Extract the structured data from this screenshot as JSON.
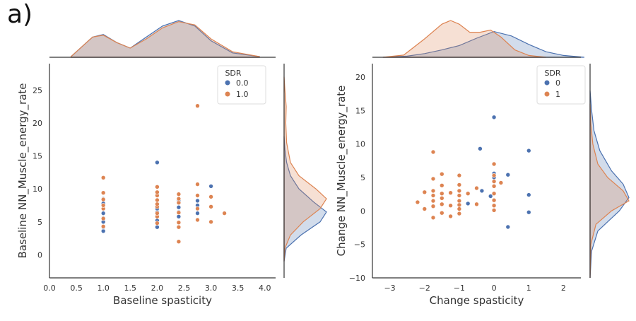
{
  "panel_label": "a)",
  "chart_data": [
    {
      "type": "scatter",
      "xlabel": "Baseline spasticity",
      "ylabel": "Baseline NN_Muscle_energy_rate",
      "xlim": [
        0.0,
        4.2
      ],
      "ylim": [
        -3.5,
        29
      ],
      "xticks": [
        "0.0",
        "0.5",
        "1.0",
        "1.5",
        "2.0",
        "2.5",
        "3.0",
        "3.5",
        "4.0"
      ],
      "xtick_values": [
        0.0,
        0.5,
        1.0,
        1.5,
        2.0,
        2.5,
        3.0,
        3.5,
        4.0
      ],
      "yticks": [
        "0",
        "5",
        "10",
        "15",
        "20",
        "25"
      ],
      "ytick_values": [
        0,
        5,
        10,
        15,
        20,
        25
      ],
      "legend": {
        "title": "SDR",
        "placement": "top-right"
      },
      "grid": false,
      "marginal": "kde",
      "series": [
        {
          "name": "0.0",
          "color": "#4c72b0",
          "points": [
            [
              1.0,
              3.6
            ],
            [
              1.0,
              4.2
            ],
            [
              1.0,
              5.0
            ],
            [
              1.0,
              5.6
            ],
            [
              1.0,
              6.3
            ],
            [
              1.0,
              7.0
            ],
            [
              1.0,
              7.8
            ],
            [
              1.0,
              8.5
            ],
            [
              2.0,
              4.2
            ],
            [
              2.0,
              5.2
            ],
            [
              2.0,
              6.5
            ],
            [
              2.0,
              7.0
            ],
            [
              2.0,
              7.5
            ],
            [
              2.0,
              14.0
            ],
            [
              2.4,
              5.8
            ],
            [
              2.4,
              6.5
            ],
            [
              2.4,
              7.2
            ],
            [
              2.4,
              8.2
            ],
            [
              2.75,
              6.3
            ],
            [
              2.75,
              7.5
            ],
            [
              2.75,
              8.2
            ],
            [
              3.0,
              10.4
            ]
          ],
          "marginal_x": [
            [
              0.4,
              0.02
            ],
            [
              0.8,
              0.55
            ],
            [
              1.0,
              0.62
            ],
            [
              1.25,
              0.4
            ],
            [
              1.5,
              0.25
            ],
            [
              1.8,
              0.55
            ],
            [
              2.1,
              0.85
            ],
            [
              2.4,
              1.0
            ],
            [
              2.7,
              0.85
            ],
            [
              3.0,
              0.45
            ],
            [
              3.4,
              0.12
            ],
            [
              3.9,
              0.02
            ]
          ],
          "marginal_y": [
            [
              -1,
              0.0
            ],
            [
              1,
              0.05
            ],
            [
              3,
              0.4
            ],
            [
              5,
              0.85
            ],
            [
              6.5,
              1.0
            ],
            [
              8,
              0.7
            ],
            [
              10,
              0.35
            ],
            [
              12,
              0.15
            ],
            [
              14,
              0.06
            ],
            [
              16,
              0.02
            ],
            [
              18,
              0.0
            ]
          ]
        },
        {
          "name": "1.0",
          "color": "#dd8452",
          "points": [
            [
              1.0,
              4.3
            ],
            [
              1.0,
              5.5
            ],
            [
              1.0,
              7.0
            ],
            [
              1.0,
              7.5
            ],
            [
              1.0,
              8.4
            ],
            [
              1.0,
              9.4
            ],
            [
              1.0,
              11.7
            ],
            [
              2.0,
              4.8
            ],
            [
              2.0,
              5.8
            ],
            [
              2.0,
              6.3
            ],
            [
              2.0,
              7.3
            ],
            [
              2.0,
              7.7
            ],
            [
              2.0,
              8.3
            ],
            [
              2.0,
              9.0
            ],
            [
              2.0,
              9.5
            ],
            [
              2.0,
              10.3
            ],
            [
              2.4,
              2.0
            ],
            [
              2.4,
              4.2
            ],
            [
              2.4,
              4.9
            ],
            [
              2.4,
              6.4
            ],
            [
              2.4,
              7.9
            ],
            [
              2.4,
              8.5
            ],
            [
              2.4,
              9.2
            ],
            [
              2.75,
              5.3
            ],
            [
              2.75,
              7.0
            ],
            [
              2.75,
              9.0
            ],
            [
              2.75,
              10.7
            ],
            [
              2.75,
              22.6
            ],
            [
              3.0,
              5.0
            ],
            [
              3.0,
              7.3
            ],
            [
              3.0,
              8.8
            ],
            [
              3.25,
              6.3
            ]
          ],
          "marginal_x": [
            [
              0.4,
              0.02
            ],
            [
              0.8,
              0.55
            ],
            [
              1.0,
              0.6
            ],
            [
              1.25,
              0.4
            ],
            [
              1.5,
              0.25
            ],
            [
              1.8,
              0.5
            ],
            [
              2.1,
              0.8
            ],
            [
              2.4,
              0.97
            ],
            [
              2.7,
              0.88
            ],
            [
              3.0,
              0.5
            ],
            [
              3.4,
              0.15
            ],
            [
              3.9,
              0.02
            ]
          ],
          "marginal_y": [
            [
              -1,
              0.0
            ],
            [
              1,
              0.02
            ],
            [
              3,
              0.15
            ],
            [
              5,
              0.45
            ],
            [
              7,
              0.85
            ],
            [
              8.5,
              1.0
            ],
            [
              10,
              0.75
            ],
            [
              12,
              0.35
            ],
            [
              14,
              0.15
            ],
            [
              17,
              0.06
            ],
            [
              20,
              0.04
            ],
            [
              22.5,
              0.05
            ],
            [
              25,
              0.02
            ],
            [
              27,
              0.0
            ]
          ]
        }
      ]
    },
    {
      "type": "scatter",
      "xlabel": "Change spasticity",
      "ylabel": "Change NN_Muscle_energy_rate",
      "xlim": [
        -3.5,
        2.5
      ],
      "ylim": [
        -10,
        22
      ],
      "xticks": [
        "−3",
        "−2",
        "−1",
        "0",
        "1",
        "2"
      ],
      "xtick_values": [
        -3,
        -2,
        -1,
        0,
        1,
        2
      ],
      "yticks": [
        "−10",
        "−5",
        "0",
        "5",
        "10",
        "15",
        "20"
      ],
      "ytick_values": [
        -10,
        -5,
        0,
        5,
        10,
        15,
        20
      ],
      "legend": {
        "title": "SDR",
        "placement": "top-right"
      },
      "grid": false,
      "marginal": "kde",
      "series": [
        {
          "name": "0",
          "color": "#4c72b0",
          "points": [
            [
              -0.75,
              1.1
            ],
            [
              -0.4,
              9.3
            ],
            [
              -0.35,
              3.0
            ],
            [
              0.0,
              14.0
            ],
            [
              0.0,
              5.6
            ],
            [
              0.0,
              5.0
            ],
            [
              0.4,
              5.4
            ],
            [
              0.4,
              -2.4
            ],
            [
              1.0,
              9.0
            ],
            [
              1.0,
              2.4
            ],
            [
              1.0,
              -0.2
            ],
            [
              -0.1,
              2.2
            ]
          ],
          "marginal_x": [
            [
              -3.2,
              0.0
            ],
            [
              -2.5,
              0.03
            ],
            [
              -2.0,
              0.1
            ],
            [
              -1.5,
              0.2
            ],
            [
              -1.0,
              0.32
            ],
            [
              -0.5,
              0.52
            ],
            [
              0.0,
              0.7
            ],
            [
              0.5,
              0.58
            ],
            [
              1.0,
              0.35
            ],
            [
              1.5,
              0.15
            ],
            [
              2.0,
              0.05
            ],
            [
              2.6,
              0.0
            ]
          ],
          "marginal_y": [
            [
              -10,
              0.0
            ],
            [
              -6,
              0.04
            ],
            [
              -3,
              0.2
            ],
            [
              0,
              0.75
            ],
            [
              2,
              1.0
            ],
            [
              4,
              0.85
            ],
            [
              6,
              0.55
            ],
            [
              9,
              0.25
            ],
            [
              12,
              0.1
            ],
            [
              15,
              0.04
            ],
            [
              18,
              0.0
            ]
          ]
        },
        {
          "name": "1",
          "color": "#dd8452",
          "points": [
            [
              -2.2,
              1.3
            ],
            [
              -2.0,
              2.8
            ],
            [
              -2.0,
              0.3
            ],
            [
              -1.75,
              8.8
            ],
            [
              -1.75,
              4.8
            ],
            [
              -1.75,
              3.0
            ],
            [
              -1.75,
              2.3
            ],
            [
              -1.75,
              1.5
            ],
            [
              -1.75,
              0.7
            ],
            [
              -1.75,
              -1.0
            ],
            [
              -1.5,
              5.5
            ],
            [
              -1.5,
              3.8
            ],
            [
              -1.5,
              2.6
            ],
            [
              -1.5,
              1.9
            ],
            [
              -1.5,
              1.0
            ],
            [
              -1.5,
              -0.3
            ],
            [
              -1.25,
              2.7
            ],
            [
              -1.25,
              0.8
            ],
            [
              -1.25,
              -0.8
            ],
            [
              -1.0,
              5.3
            ],
            [
              -1.0,
              3.9
            ],
            [
              -1.0,
              3.0
            ],
            [
              -1.0,
              2.3
            ],
            [
              -1.0,
              1.5
            ],
            [
              -1.0,
              0.9
            ],
            [
              -1.0,
              0.3
            ],
            [
              -1.0,
              -0.4
            ],
            [
              -0.75,
              2.6
            ],
            [
              -0.5,
              3.4
            ],
            [
              -0.5,
              1.0
            ],
            [
              0.0,
              7.0
            ],
            [
              0.0,
              5.3
            ],
            [
              0.0,
              4.4
            ],
            [
              0.0,
              3.7
            ],
            [
              0.0,
              2.6
            ],
            [
              0.0,
              1.6
            ],
            [
              0.0,
              0.8
            ],
            [
              0.0,
              0.1
            ],
            [
              0.2,
              4.2
            ]
          ],
          "marginal_x": [
            [
              -3.2,
              0.0
            ],
            [
              -2.6,
              0.06
            ],
            [
              -2.0,
              0.5
            ],
            [
              -1.5,
              0.9
            ],
            [
              -1.25,
              1.0
            ],
            [
              -1.0,
              0.9
            ],
            [
              -0.7,
              0.68
            ],
            [
              -0.4,
              0.68
            ],
            [
              -0.1,
              0.74
            ],
            [
              0.2,
              0.55
            ],
            [
              0.6,
              0.2
            ],
            [
              1.0,
              0.05
            ],
            [
              1.5,
              0.0
            ]
          ],
          "marginal_y": [
            [
              -10,
              0.0
            ],
            [
              -5,
              0.02
            ],
            [
              -2,
              0.15
            ],
            [
              0,
              0.55
            ],
            [
              1.5,
              1.0
            ],
            [
              3,
              0.85
            ],
            [
              5,
              0.45
            ],
            [
              7,
              0.2
            ],
            [
              10,
              0.07
            ],
            [
              13,
              0.02
            ],
            [
              16,
              0.0
            ]
          ]
        }
      ]
    }
  ]
}
